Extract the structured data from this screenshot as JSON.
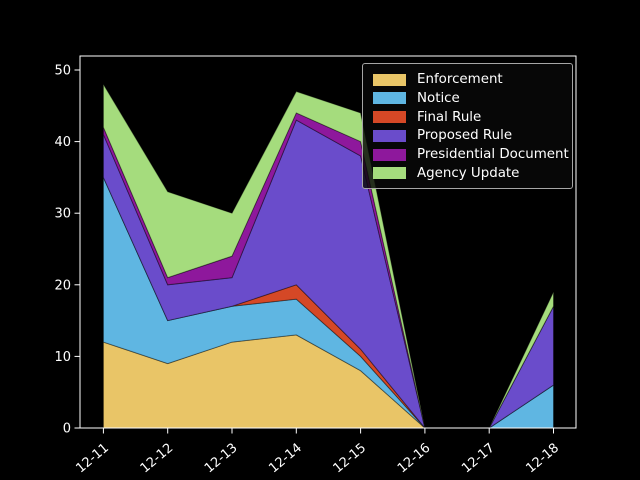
{
  "chart_data": {
    "type": "area",
    "stacked": true,
    "title": "",
    "xlabel": "",
    "ylabel": "",
    "categories": [
      "12-11",
      "12-12",
      "12-13",
      "12-14",
      "12-15",
      "12-16",
      "12-17",
      "12-18"
    ],
    "series": [
      {
        "name": "Enforcement",
        "color": "#e9c567",
        "values": [
          12,
          9,
          12,
          13,
          8,
          0,
          0,
          0
        ]
      },
      {
        "name": "Notice",
        "color": "#5fb6e2",
        "values": [
          23,
          6,
          5,
          5,
          2,
          0,
          0,
          6
        ]
      },
      {
        "name": "Final Rule",
        "color": "#d54826",
        "values": [
          0,
          0,
          0,
          2,
          1,
          0,
          0,
          0
        ]
      },
      {
        "name": "Proposed Rule",
        "color": "#6a4ccb",
        "values": [
          6,
          5,
          4,
          23,
          27,
          0,
          0,
          11
        ]
      },
      {
        "name": "Presidential Document",
        "color": "#8e189c",
        "values": [
          1,
          1,
          3,
          1,
          2,
          0,
          0,
          0
        ]
      },
      {
        "name": "Agency Update",
        "color": "#a5dc7d",
        "values": [
          6,
          12,
          6,
          3,
          4,
          0,
          0,
          2
        ]
      }
    ],
    "y_ticks": [
      0,
      10,
      20,
      30,
      40,
      50
    ],
    "ylim": [
      0,
      50
    ],
    "grid": false,
    "legend_position": "upper right",
    "background_color": "#000000",
    "axis_color": "#ffffff"
  }
}
